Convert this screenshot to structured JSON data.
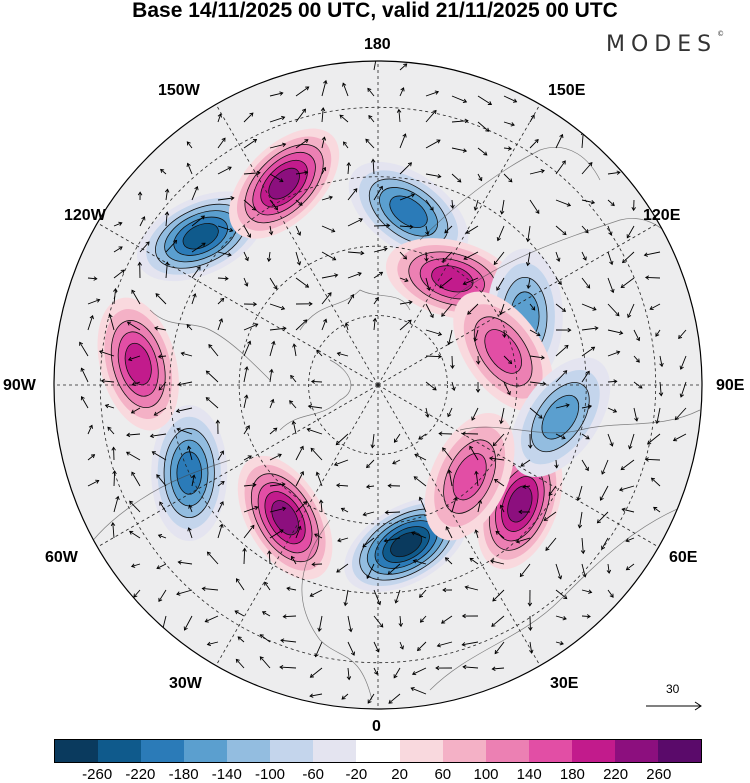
{
  "title": "Base 14/11/2025 00 UTC, valid 21/11/2025 00 UTC",
  "logo": "MODES",
  "logo_mark": "©",
  "longitude_labels": {
    "n180": "180",
    "w150": "150W",
    "e150": "150E",
    "w120": "120W",
    "e120": "120E",
    "w90": "90W",
    "e90": "90E",
    "w60": "60W",
    "e60": "60E",
    "w30": "30W",
    "e30": "30E",
    "s0": "0"
  },
  "reference_vector": {
    "label": "30"
  },
  "colorbar": {
    "ticks": [
      "-260",
      "-220",
      "-180",
      "-140",
      "-100",
      "-60",
      "-20",
      "20",
      "60",
      "100",
      "140",
      "180",
      "220",
      "260"
    ],
    "colors": [
      "#0a3a5e",
      "#0f5a8c",
      "#2b7bb8",
      "#5b9fcf",
      "#93bde0",
      "#c4d5ec",
      "#e4e4f0",
      "#ffffff",
      "#f9d9de",
      "#f4b1c6",
      "#ec80b3",
      "#e24ea5",
      "#c21b8c",
      "#8c0f7e",
      "#5a0a6a"
    ]
  },
  "chart_data": {
    "type": "polar stereographic map (northern hemisphere)",
    "field": "height anomaly (filled contours) with wind vectors",
    "anomaly_centers": [
      {
        "sign": "negative",
        "lon": 10,
        "lat": 55,
        "value": -260
      },
      {
        "sign": "positive",
        "lon": -35,
        "lat": 55,
        "value": 220
      },
      {
        "sign": "positive",
        "lon": 50,
        "lat": 50,
        "value": 220
      },
      {
        "sign": "negative",
        "lon": -65,
        "lat": 45,
        "value": -180
      },
      {
        "sign": "positive",
        "lon": -95,
        "lat": 38,
        "value": 180
      },
      {
        "sign": "negative",
        "lon": -130,
        "lat": 40,
        "value": -220
      },
      {
        "sign": "positive",
        "lon": -155,
        "lat": 42,
        "value": 220
      },
      {
        "sign": "negative",
        "lon": 170,
        "lat": 52,
        "value": -180
      },
      {
        "sign": "positive",
        "lon": 145,
        "lat": 62,
        "value": 180
      },
      {
        "sign": "negative",
        "lon": 115,
        "lat": 55,
        "value": -140
      },
      {
        "sign": "positive",
        "lon": 105,
        "lat": 62,
        "value": 140
      },
      {
        "sign": "negative",
        "lon": 80,
        "lat": 50,
        "value": -140
      },
      {
        "sign": "positive",
        "lon": 45,
        "lat": 62,
        "value": 140
      }
    ]
  }
}
